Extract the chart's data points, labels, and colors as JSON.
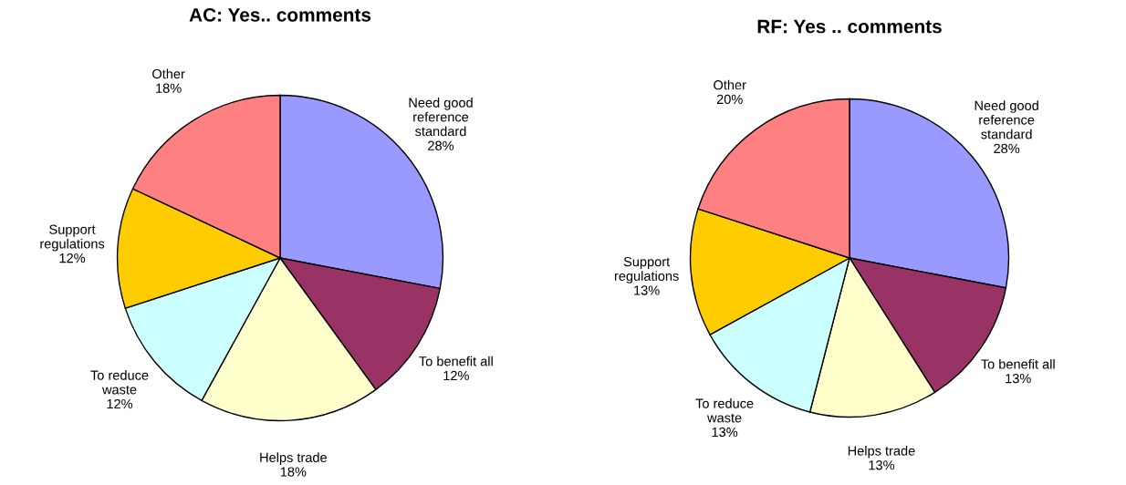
{
  "chart_data": [
    {
      "type": "pie",
      "title": "AC: Yes.. comments",
      "categories": [
        "Need good\nreference\nstandard",
        "To benefit all",
        "Helps trade",
        "To reduce\nwaste",
        "Support\nregulations",
        "Other"
      ],
      "values": [
        28,
        12,
        18,
        12,
        12,
        18
      ],
      "value_labels": [
        "28%",
        "12%",
        "18%",
        "12%",
        "12%",
        "18%"
      ],
      "colors": [
        "#9999ff",
        "#993366",
        "#ffffcc",
        "#ccffff",
        "#ffcc00",
        "#ff8080"
      ]
    },
    {
      "type": "pie",
      "title": "RF: Yes .. comments",
      "categories": [
        "Need good\nreference\nstandard",
        "To benefit all",
        "Helps trade",
        "To reduce\nwaste",
        "Support\nregulations",
        "Other"
      ],
      "values": [
        28,
        13,
        13,
        13,
        13,
        20
      ],
      "value_labels": [
        "28%",
        "13%",
        "13%",
        "13%",
        "13%",
        "20%"
      ],
      "colors": [
        "#9999ff",
        "#993366",
        "#ffffcc",
        "#ccffff",
        "#ffcc00",
        "#ff8080"
      ]
    }
  ]
}
